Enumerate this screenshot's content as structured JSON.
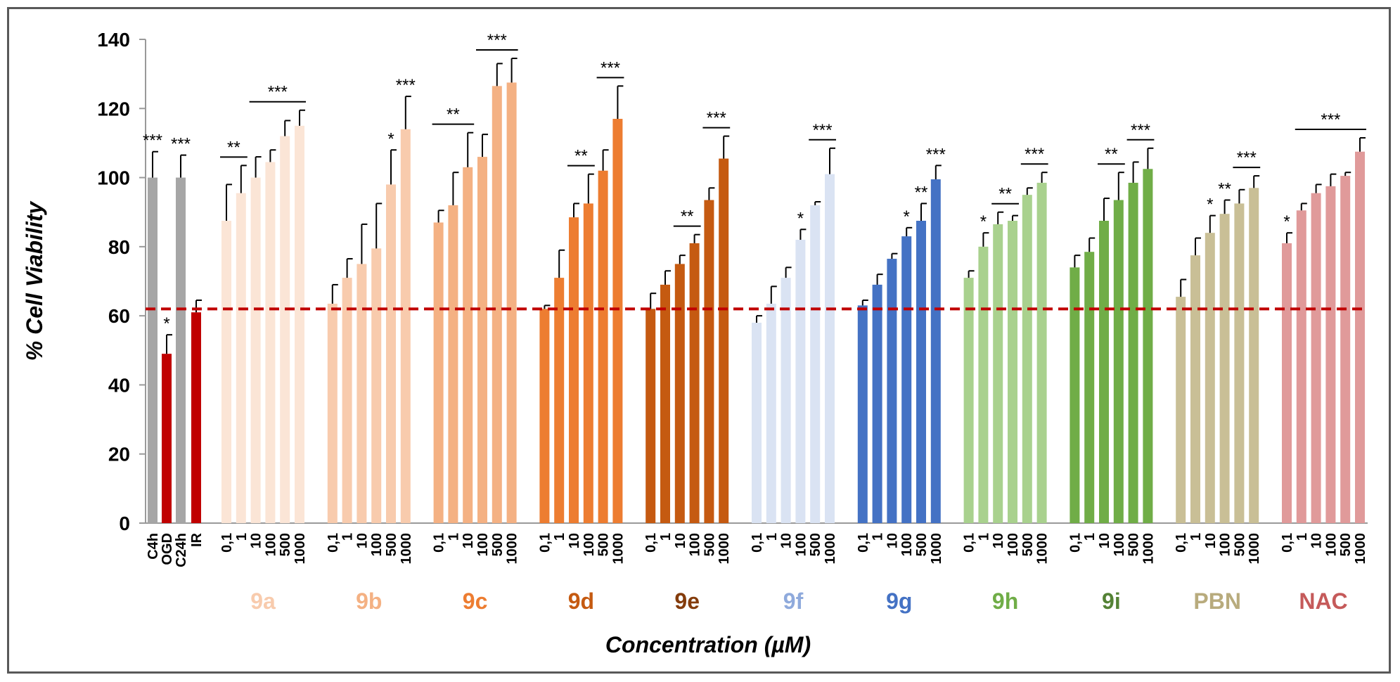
{
  "chart_data": {
    "type": "bar",
    "ylabel": "% Cell Viability",
    "xlabel": "Concentration (µM)",
    "ylim": [
      0,
      140
    ],
    "yticks": [
      0,
      20,
      40,
      60,
      80,
      100,
      120,
      140
    ],
    "reference_line": 62,
    "reference_color": "#c00000",
    "controls": {
      "categories": [
        "C4h",
        "OGD",
        "C24h",
        "IR"
      ],
      "values": [
        100,
        49,
        100,
        61
      ],
      "errors": [
        7.5,
        5.5,
        6.5,
        3.5
      ],
      "colors": [
        "#a6a6a6",
        "#c00000",
        "#a6a6a6",
        "#c00000"
      ],
      "markers": [
        "***",
        "*",
        "***",
        ""
      ]
    },
    "conc_labels": [
      "0,1",
      "1",
      "10",
      "100",
      "500",
      "1000"
    ],
    "groups": [
      {
        "name": "9a",
        "label_color": "#f8cbad",
        "color": "#fbe5d6",
        "values": [
          87.5,
          95.5,
          100,
          104.5,
          112,
          115
        ],
        "errors": [
          10.5,
          8,
          6,
          3.5,
          4.5,
          4.5
        ],
        "markers": [
          "",
          "",
          "",
          "",
          "",
          ""
        ],
        "brackets": [
          {
            "from": 0,
            "to": 1,
            "text": "**"
          },
          {
            "from": 2,
            "to": 5,
            "text": "***"
          }
        ]
      },
      {
        "name": "9b",
        "label_color": "#f4b183",
        "color": "#f8cbad",
        "values": [
          63.5,
          71,
          75,
          79.5,
          98,
          114
        ],
        "errors": [
          5.5,
          5.5,
          11.5,
          13,
          10,
          9.5
        ],
        "markers": [
          "",
          "",
          "",
          "",
          "*",
          "***"
        ],
        "brackets": []
      },
      {
        "name": "9c",
        "label_color": "#ed7d31",
        "color": "#f4b183",
        "values": [
          87,
          92,
          103,
          106,
          126.5,
          127.5
        ],
        "errors": [
          3.5,
          9.5,
          10,
          6.5,
          6.5,
          7
        ],
        "markers": [
          "",
          "",
          "",
          "",
          "",
          ""
        ],
        "brackets": [
          {
            "from": 0,
            "to": 2,
            "text": "**"
          },
          {
            "from": 3,
            "to": 5,
            "text": "***"
          }
        ]
      },
      {
        "name": "9d",
        "label_color": "#c55a11",
        "color": "#ed7d31",
        "values": [
          62,
          71,
          88.5,
          92.5,
          102,
          117
        ],
        "errors": [
          1,
          8,
          4,
          8.5,
          6,
          9.5
        ],
        "markers": [
          "",
          "",
          "",
          "",
          "",
          ""
        ],
        "brackets": [
          {
            "from": 2,
            "to": 3,
            "text": "**"
          },
          {
            "from": 4,
            "to": 5,
            "text": "***"
          }
        ]
      },
      {
        "name": "9e",
        "label_color": "#843c0c",
        "color": "#c55a11",
        "values": [
          62,
          69,
          75,
          81,
          93.5,
          105.5
        ],
        "errors": [
          4.5,
          4,
          2.5,
          2.5,
          3.5,
          6.5
        ],
        "markers": [
          "",
          "",
          "",
          "",
          "",
          ""
        ],
        "brackets": [
          {
            "from": 2,
            "to": 3,
            "text": "**"
          },
          {
            "from": 4,
            "to": 5,
            "text": "***"
          }
        ]
      },
      {
        "name": "9f",
        "label_color": "#8faadc",
        "color": "#dae3f3",
        "values": [
          58,
          63.5,
          71,
          82,
          92,
          101
        ],
        "errors": [
          2,
          5,
          3,
          3,
          1,
          7.5
        ],
        "markers": [
          "",
          "",
          "",
          "*",
          "",
          ""
        ],
        "brackets": [
          {
            "from": 4,
            "to": 5,
            "text": "***"
          }
        ]
      },
      {
        "name": "9g",
        "label_color": "#4472c4",
        "color": "#4472c4",
        "values": [
          63,
          69,
          76.5,
          83,
          87.5,
          99.5
        ],
        "errors": [
          1.5,
          3,
          1.5,
          2.5,
          5,
          4
        ],
        "markers": [
          "",
          "",
          "",
          "*",
          "**",
          "***"
        ],
        "brackets": []
      },
      {
        "name": "9h",
        "label_color": "#70ad47",
        "color": "#a9d18e",
        "values": [
          71,
          80,
          86.5,
          87.5,
          95,
          98.5
        ],
        "errors": [
          2,
          4,
          3.5,
          1.5,
          2,
          3
        ],
        "markers": [
          "",
          "*",
          "",
          "",
          "",
          ""
        ],
        "brackets": [
          {
            "from": 2,
            "to": 3,
            "text": "**"
          },
          {
            "from": 4,
            "to": 5,
            "text": "***"
          }
        ]
      },
      {
        "name": "9i",
        "label_color": "#548235",
        "color": "#70ad47",
        "values": [
          74,
          78.5,
          87.5,
          93.5,
          98.5,
          102.5
        ],
        "errors": [
          3.5,
          4,
          6.5,
          8,
          6,
          6
        ],
        "markers": [
          "",
          "",
          "",
          "",
          "",
          ""
        ],
        "brackets": [
          {
            "from": 2,
            "to": 3,
            "text": "**"
          },
          {
            "from": 4,
            "to": 5,
            "text": "***"
          }
        ]
      },
      {
        "name": "PBN",
        "label_color": "#b8ab7d",
        "color": "#c9bf96",
        "values": [
          65.5,
          77.5,
          84,
          89.5,
          92.5,
          97
        ],
        "errors": [
          5,
          5,
          5,
          4,
          4,
          3.5
        ],
        "markers": [
          "",
          "",
          "*",
          "**",
          "",
          ""
        ],
        "brackets": [
          {
            "from": 4,
            "to": 5,
            "text": "***"
          }
        ]
      },
      {
        "name": "NAC",
        "label_color": "#c55a5a",
        "color": "#e09a9a",
        "values": [
          81,
          90.5,
          95.5,
          97.5,
          100.5,
          107.5
        ],
        "errors": [
          3,
          2,
          2.5,
          3.5,
          1,
          4
        ],
        "markers": [
          "*",
          "",
          "",
          "",
          "",
          ""
        ],
        "brackets": [
          {
            "from": 1,
            "to": 5,
            "text": "***"
          }
        ]
      }
    ]
  }
}
